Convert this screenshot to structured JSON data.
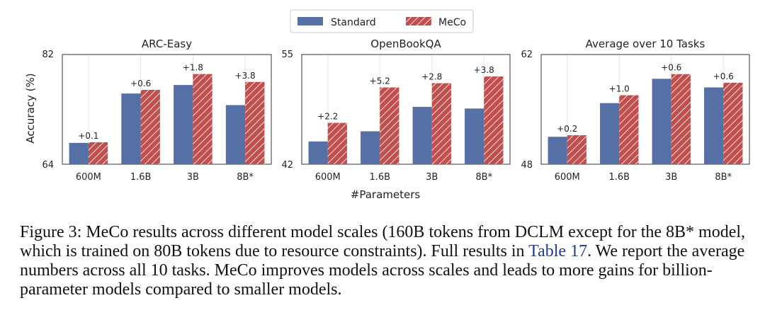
{
  "legend": {
    "standard": "Standard",
    "meco": "MeCo"
  },
  "colors": {
    "standard": "#5470a4",
    "meco": "#c0504d",
    "grid": "#e6e6e6"
  },
  "shared_xlabel": "#Parameters",
  "chart_data": [
    {
      "type": "bar",
      "title": "ARC-Easy",
      "ylabel": "Accuracy (%)",
      "categories": [
        "600M",
        "1.6B",
        "3B",
        "8B*"
      ],
      "ylim": [
        64,
        82
      ],
      "yticks": [
        "82",
        "64"
      ],
      "series": [
        {
          "name": "Standard",
          "values": [
            67.5,
            75.6,
            77.0,
            73.7
          ]
        },
        {
          "name": "MeCo",
          "values": [
            67.6,
            76.2,
            78.8,
            77.5
          ]
        }
      ],
      "annotations": [
        "+0.1",
        "+0.6",
        "+1.8",
        "+3.8"
      ],
      "grid": true
    },
    {
      "type": "bar",
      "title": "OpenBookQA",
      "ylabel": "",
      "categories": [
        "600M",
        "1.6B",
        "3B",
        "8B*"
      ],
      "ylim": [
        42,
        55
      ],
      "yticks": [
        "55",
        "42"
      ],
      "series": [
        {
          "name": "Standard",
          "values": [
            44.7,
            45.9,
            48.8,
            48.6
          ]
        },
        {
          "name": "MeCo",
          "values": [
            46.9,
            51.1,
            51.6,
            52.4
          ]
        }
      ],
      "annotations": [
        "+2.2",
        "+5.2",
        "+2.8",
        "+3.8"
      ],
      "grid": true
    },
    {
      "type": "bar",
      "title": "Average over 10 Tasks",
      "ylabel": "",
      "categories": [
        "600M",
        "1.6B",
        "3B",
        "8B*"
      ],
      "ylim": [
        48,
        62
      ],
      "yticks": [
        "62",
        "48"
      ],
      "series": [
        {
          "name": "Standard",
          "values": [
            51.5,
            55.8,
            58.9,
            57.8
          ]
        },
        {
          "name": "MeCo",
          "values": [
            51.7,
            56.8,
            59.5,
            58.4
          ]
        }
      ],
      "annotations": [
        "+0.2",
        "+1.0",
        "+0.6",
        "+0.6"
      ],
      "grid": true
    }
  ],
  "caption": {
    "prefix": "Figure 3: MeCo results across different model scales (160B tokens from DCLM except for the 8B* model, which is trained on 80B tokens due to resource constraints). Full results in ",
    "link": "Table 17",
    "suffix": ". We report the average numbers across all 10 tasks. MeCo improves models across scales and leads to more gains for billion-parameter models compared to smaller models."
  }
}
